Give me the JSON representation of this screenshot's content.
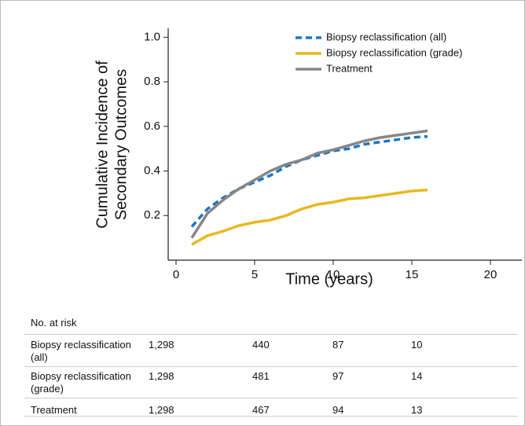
{
  "chart_data": {
    "type": "line",
    "xlabel": "Time (years)",
    "ylabel": [
      "Cumulative Incidence of",
      "Secondary Outcomes"
    ],
    "x": [
      1,
      2,
      3,
      4,
      5,
      6,
      7,
      8,
      9,
      10,
      11,
      12,
      13,
      14,
      15,
      16
    ],
    "series": [
      {
        "name": "Biopsy reclassification (all)",
        "color": "#1f77c4",
        "dash": true,
        "values": [
          0.15,
          0.23,
          0.28,
          0.32,
          0.35,
          0.38,
          0.42,
          0.45,
          0.47,
          0.49,
          0.5,
          0.52,
          0.53,
          0.54,
          0.55,
          0.555
        ]
      },
      {
        "name": "Biopsy reclassification (grade)",
        "color": "#e8b820",
        "values": [
          0.07,
          0.11,
          0.13,
          0.155,
          0.17,
          0.18,
          0.2,
          0.23,
          0.25,
          0.26,
          0.275,
          0.28,
          0.29,
          0.3,
          0.31,
          0.315
        ]
      },
      {
        "name": "Treatment",
        "color": "#878787",
        "values": [
          0.1,
          0.21,
          0.27,
          0.32,
          0.36,
          0.4,
          0.43,
          0.45,
          0.48,
          0.495,
          0.515,
          0.535,
          0.55,
          0.56,
          0.57,
          0.58
        ]
      }
    ],
    "xlim": [
      -0.5,
      22
    ],
    "ylim": [
      0,
      1.04
    ],
    "xticks": [
      0,
      5,
      10,
      15,
      20
    ],
    "yticks": [
      0.2,
      0.4,
      0.6,
      0.8,
      {
        "value": 1,
        "label": "1.0"
      }
    ],
    "legend": "upper-right"
  },
  "risk_table": {
    "title": "No. at risk",
    "rows": [
      {
        "label": "Biopsy reclassification (all)",
        "values": [
          "1,298",
          "440",
          "87",
          "10"
        ]
      },
      {
        "label": "Biopsy reclassification (grade)",
        "values": [
          "1,298",
          "481",
          "97",
          "14"
        ]
      },
      {
        "label": "Treatment",
        "values": [
          "1,298",
          "467",
          "94",
          "13"
        ]
      }
    ]
  }
}
